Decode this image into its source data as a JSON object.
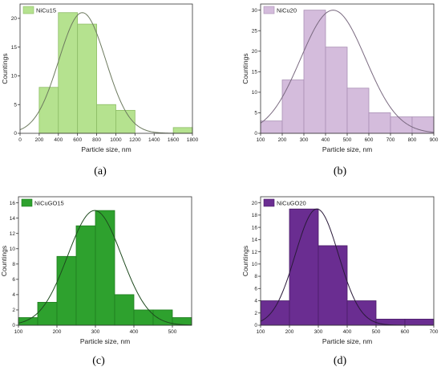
{
  "chart_data": [
    {
      "type": "bar",
      "panel": "(a)",
      "legend": "NiCu15",
      "xlabel": "Particle size, nm",
      "ylabel": "Countings",
      "xlim": [
        0,
        1800
      ],
      "ylim": [
        0,
        22.5
      ],
      "xticks": [
        0,
        200,
        400,
        600,
        800,
        1000,
        1200,
        1400,
        1600,
        1800
      ],
      "yticks": [
        0,
        5,
        10,
        15,
        20
      ],
      "bin_edges": [
        200,
        400,
        600,
        800,
        1000,
        1200,
        1400,
        1600,
        1800
      ],
      "values": [
        8,
        21,
        19,
        5,
        4,
        0,
        0,
        1
      ],
      "fit": {
        "type": "gaussian",
        "mean": 650,
        "sigma": 245,
        "peak": 21
      },
      "fill": "#b5e28f",
      "stroke": "#8dbd66",
      "curve_color": "#6d7a5f",
      "legend_placement": "top-left"
    },
    {
      "type": "bar",
      "panel": "(b)",
      "legend": "NiCu20",
      "xlabel": "Particle size, nm",
      "ylabel": "Countings",
      "xlim": [
        100,
        900
      ],
      "ylim": [
        0,
        31.5
      ],
      "xticks": [
        100,
        200,
        300,
        400,
        500,
        600,
        700,
        800,
        900
      ],
      "yticks": [
        0,
        5,
        10,
        15,
        20,
        25,
        30
      ],
      "bin_edges": [
        100,
        200,
        300,
        400,
        500,
        600,
        700,
        800,
        900
      ],
      "values": [
        3,
        13,
        30,
        21,
        11,
        5,
        4,
        4
      ],
      "fit": {
        "type": "gaussian",
        "mean": 435,
        "sigma": 150,
        "peak": 30
      },
      "fill": "#d4bcdc",
      "stroke": "#a98fb5",
      "curve_color": "#7a6a80",
      "legend_placement": "top-left"
    },
    {
      "type": "bar",
      "panel": "(c)",
      "legend": "NiCuGO15",
      "xlabel": "Particle size, nm",
      "ylabel": "Countings",
      "xlim": [
        100,
        550
      ],
      "ylim": [
        0,
        16.8
      ],
      "xticks": [
        100,
        200,
        300,
        400,
        500
      ],
      "yticks": [
        0,
        2,
        4,
        6,
        8,
        10,
        12,
        14,
        16
      ],
      "bin_edges": [
        100,
        150,
        200,
        250,
        300,
        350,
        400,
        450,
        500,
        550
      ],
      "values": [
        1,
        3,
        9,
        13,
        15,
        4,
        2,
        2,
        1
      ],
      "fit": {
        "type": "gaussian",
        "mean": 298,
        "sigma": 70,
        "peak": 15
      },
      "fill": "#2ea12e",
      "stroke": "#1f7d1f",
      "curve_color": "#1e4a1e",
      "legend_placement": "top-left"
    },
    {
      "type": "bar",
      "panel": "(d)",
      "legend": "NiCuGO20",
      "xlabel": "Particle size, nm",
      "ylabel": "Countings",
      "xlim": [
        100,
        700
      ],
      "ylim": [
        0,
        21
      ],
      "xticks": [
        100,
        200,
        300,
        400,
        500,
        600,
        700
      ],
      "yticks": [
        0,
        2,
        4,
        6,
        8,
        10,
        12,
        14,
        16,
        18,
        20
      ],
      "bin_edges": [
        100,
        200,
        300,
        400,
        500,
        600,
        700
      ],
      "values": [
        4,
        19,
        13,
        4,
        1,
        1
      ],
      "fit": {
        "type": "gaussian",
        "mean": 295,
        "sigma": 75,
        "peak": 19
      },
      "fill": "#6a2d91",
      "stroke": "#4a1d68",
      "curve_color": "#2a1a3a",
      "legend_placement": "top-left"
    }
  ]
}
